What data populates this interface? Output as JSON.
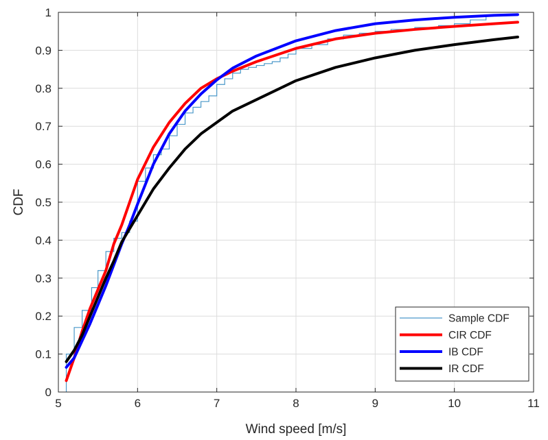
{
  "chart_data": {
    "type": "line",
    "title": "",
    "xlabel": "Wind speed [m/s]",
    "ylabel": "CDF",
    "xlim": [
      5,
      11
    ],
    "ylim": [
      0,
      1
    ],
    "x_ticks": [
      5,
      6,
      7,
      8,
      9,
      10,
      11
    ],
    "y_ticks": [
      0,
      0.1,
      0.2,
      0.3,
      0.4,
      0.5,
      0.6,
      0.7,
      0.8,
      0.9,
      1
    ],
    "grid": true,
    "legend_position": "bottom-right",
    "series": [
      {
        "name": "Sample CDF",
        "style": "stairs",
        "color": "#4a98c9",
        "x": [
          5.1,
          5.1,
          5.2,
          5.3,
          5.42,
          5.5,
          5.6,
          5.7,
          5.8,
          5.9,
          6.0,
          6.1,
          6.2,
          6.3,
          6.4,
          6.5,
          6.6,
          6.7,
          6.8,
          6.9,
          7.0,
          7.1,
          7.2,
          7.3,
          7.4,
          7.5,
          7.6,
          7.7,
          7.8,
          7.9,
          8.0,
          8.2,
          8.4,
          8.6,
          8.8,
          9.0,
          9.2,
          9.5,
          9.8,
          10.0,
          10.2,
          10.4
        ],
        "y": [
          0.0,
          0.1,
          0.17,
          0.215,
          0.275,
          0.32,
          0.37,
          0.405,
          0.42,
          0.45,
          0.555,
          0.59,
          0.625,
          0.64,
          0.675,
          0.705,
          0.735,
          0.75,
          0.765,
          0.78,
          0.81,
          0.825,
          0.84,
          0.85,
          0.855,
          0.86,
          0.865,
          0.87,
          0.88,
          0.89,
          0.905,
          0.915,
          0.93,
          0.94,
          0.945,
          0.95,
          0.955,
          0.96,
          0.965,
          0.97,
          0.98,
          0.99
        ]
      },
      {
        "name": "CIR CDF",
        "color": "#ff0000",
        "x": [
          5.1,
          5.2,
          5.3,
          5.4,
          5.5,
          5.6,
          5.7,
          5.8,
          5.9,
          6.0,
          6.2,
          6.4,
          6.6,
          6.8,
          7.0,
          7.2,
          7.5,
          8.0,
          8.5,
          9.0,
          9.5,
          10.0,
          10.5,
          10.8
        ],
        "y": [
          0.03,
          0.09,
          0.16,
          0.22,
          0.27,
          0.32,
          0.39,
          0.44,
          0.5,
          0.56,
          0.645,
          0.71,
          0.76,
          0.8,
          0.825,
          0.845,
          0.87,
          0.905,
          0.93,
          0.945,
          0.955,
          0.963,
          0.97,
          0.974
        ]
      },
      {
        "name": "IB CDF",
        "color": "#0000ff",
        "x": [
          5.1,
          5.2,
          5.3,
          5.4,
          5.5,
          5.6,
          5.7,
          5.8,
          5.9,
          6.0,
          6.2,
          6.4,
          6.6,
          6.8,
          7.0,
          7.2,
          7.5,
          8.0,
          8.5,
          9.0,
          9.5,
          10.0,
          10.5,
          10.8
        ],
        "y": [
          0.065,
          0.09,
          0.135,
          0.18,
          0.23,
          0.28,
          0.335,
          0.39,
          0.44,
          0.495,
          0.6,
          0.68,
          0.74,
          0.785,
          0.822,
          0.853,
          0.885,
          0.925,
          0.952,
          0.97,
          0.98,
          0.987,
          0.992,
          0.994
        ]
      },
      {
        "name": "IR CDF",
        "color": "#000000",
        "x": [
          5.1,
          5.2,
          5.3,
          5.4,
          5.5,
          5.6,
          5.7,
          5.8,
          5.9,
          6.0,
          6.2,
          6.4,
          6.6,
          6.8,
          7.0,
          7.2,
          7.5,
          8.0,
          8.5,
          9.0,
          9.5,
          10.0,
          10.5,
          10.8
        ],
        "y": [
          0.08,
          0.11,
          0.15,
          0.2,
          0.25,
          0.3,
          0.345,
          0.395,
          0.43,
          0.465,
          0.535,
          0.59,
          0.64,
          0.68,
          0.71,
          0.74,
          0.77,
          0.82,
          0.855,
          0.88,
          0.9,
          0.915,
          0.928,
          0.935
        ]
      }
    ]
  }
}
